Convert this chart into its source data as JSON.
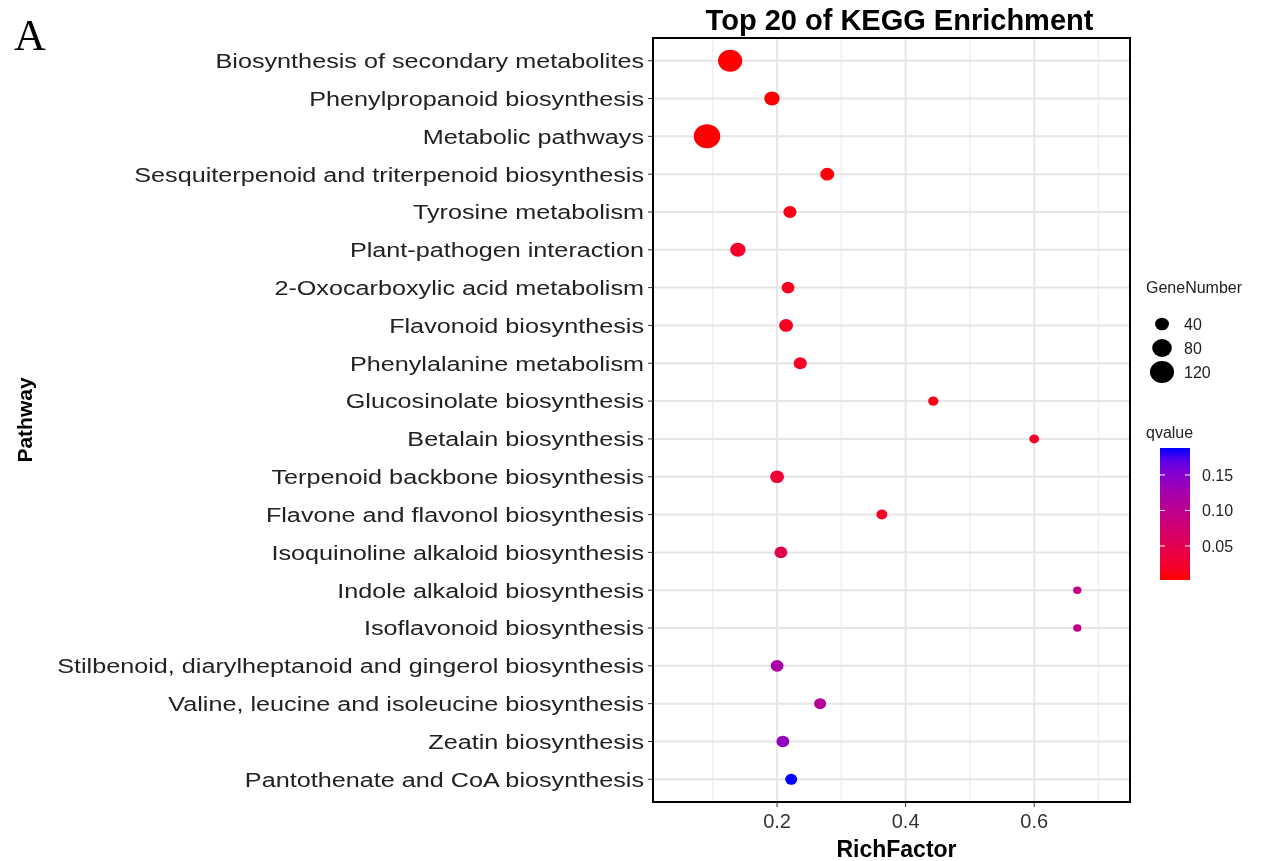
{
  "chart_data": {
    "type": "bubble",
    "orientation": "horizontal",
    "title": "Top 20 of KEGG Enrichment",
    "xlabel": "RichFactor",
    "ylabel": "Pathway",
    "legend_title": "GeneNumber",
    "clabel": "qvalue",
    "annotations": [
      "A"
    ],
    "categories": [
      "Biosynthesis of secondary metabolites",
      "Phenylpropanoid biosynthesis",
      "Metabolic pathways",
      "Sesquiterpenoid and triterpenoid biosynthesis",
      "Tyrosine metabolism",
      "Plant-pathogen interaction",
      "2-Oxocarboxylic acid metabolism",
      "Flavonoid biosynthesis",
      "Phenylalanine metabolism",
      "Glucosinolate biosynthesis",
      "Betalain biosynthesis",
      "Terpenoid backbone biosynthesis",
      "Flavone and flavonol biosynthesis",
      "Isoquinoline alkaloid biosynthesis",
      "Indole alkaloid biosynthesis",
      "Isoflavonoid biosynthesis",
      "Stilbenoid, diarylheptanoid and gingerol biosynthesis",
      "Valine, leucine and isoleucine biosynthesis",
      "Zeatin biosynthesis",
      "Pantothenate and CoA biosynthesis"
    ],
    "values": [
      0.127,
      0.192,
      0.091,
      0.278,
      0.22,
      0.139,
      0.217,
      0.214,
      0.236,
      0.443,
      0.6,
      0.2,
      0.363,
      0.206,
      0.667,
      0.667,
      0.2,
      0.267,
      0.209,
      0.222
    ],
    "sizes": [
      121,
      49,
      144,
      40,
      36,
      49,
      34,
      40,
      36,
      22,
      20,
      40,
      25,
      34,
      14,
      14,
      34,
      30,
      34,
      30
    ],
    "cvalues": [
      0.002,
      0.003,
      0.002,
      0.005,
      0.01,
      0.02,
      0.015,
      0.015,
      0.02,
      0.01,
      0.02,
      0.03,
      0.02,
      0.05,
      0.09,
      0.09,
      0.12,
      0.11,
      0.14,
      0.188
    ],
    "size_legend": [
      40,
      80,
      120
    ],
    "clim": [
      0.002,
      0.188
    ],
    "cticks": [
      0.05,
      {
        "value": 0.1,
        "label": "0.10"
      },
      0.15
    ],
    "xlim": [
      0.007,
      0.749
    ],
    "xticks": [
      0.2,
      0.4,
      0.6
    ],
    "grid": true
  }
}
